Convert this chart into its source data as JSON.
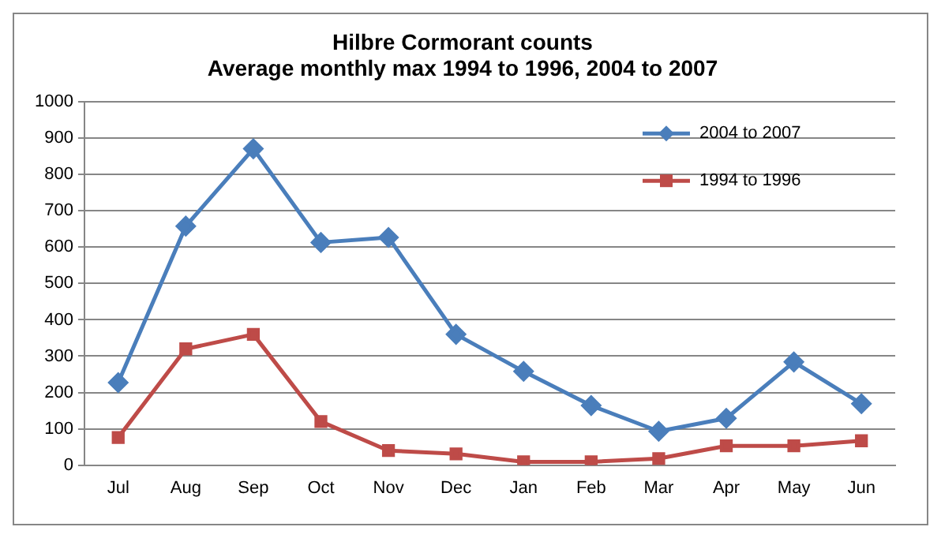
{
  "chart_data": {
    "type": "line",
    "title": "Hilbre Cormorant counts\nAverage monthly max 1994 to 1996, 2004 to 2007",
    "categories": [
      "Jul",
      "Aug",
      "Sep",
      "Oct",
      "Nov",
      "Dec",
      "Jan",
      "Feb",
      "Mar",
      "Apr",
      "May",
      "Jun"
    ],
    "series": [
      {
        "name": "2004 to 2007",
        "color": "#4a7ebb",
        "marker": "diamond",
        "values": [
          227,
          658,
          871,
          613,
          627,
          360,
          258,
          164,
          93,
          129,
          284,
          169
        ]
      },
      {
        "name": "1994 to 1996",
        "color": "#be4b48",
        "marker": "square",
        "values": [
          76,
          320,
          360,
          120,
          40,
          31,
          9,
          9,
          18,
          53,
          53,
          67
        ]
      }
    ],
    "ylim": [
      0,
      1000
    ],
    "yticks": [
      0,
      100,
      200,
      300,
      400,
      500,
      600,
      700,
      800,
      900,
      1000
    ],
    "grid": "y",
    "legend": "top right",
    "line_style": "solid"
  }
}
